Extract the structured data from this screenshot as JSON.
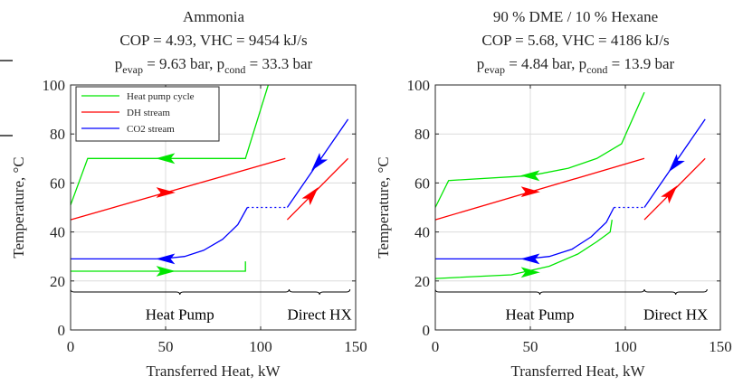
{
  "chart_data": [
    {
      "type": "line",
      "title": {
        "line1": "Ammonia",
        "line2": "COP = 4.93, VHC = 9454 kJ/s",
        "line3": {
          "p_evap_label": "p",
          "p_evap_sub": "evap",
          "p_evap_value": " = 9.63 bar, ",
          "p_cond_label": "p",
          "p_cond_sub": "cond",
          "p_cond_value": " = 33.3 bar"
        }
      },
      "xlabel": "Transferred Heat, kW",
      "ylabel": "Temperature, °C",
      "xlim": [
        0,
        150
      ],
      "ylim": [
        0,
        100
      ],
      "xticks": [
        "0",
        "50",
        "100",
        "150"
      ],
      "yticks": [
        "0",
        "20",
        "40",
        "60",
        "80",
        "100"
      ],
      "grid": true,
      "legend_position": "top-left",
      "regions": [
        {
          "label": "Heat Pump",
          "from": 0,
          "to": 115
        },
        {
          "label": "Direct HX",
          "from": 115,
          "to": 147
        }
      ],
      "series": [
        {
          "name": "Heat pump cycle",
          "color": "#00e600",
          "segments": [
            [
              [
                0,
                51
              ],
              [
                9,
                70
              ],
              [
                92,
                70
              ],
              [
                104,
                100
              ]
            ],
            [
              [
                0,
                24
              ],
              [
                92,
                24
              ],
              [
                92,
                28
              ]
            ]
          ],
          "arrows": [
            {
              "at": [
                50,
                70
              ],
              "dir": "left"
            },
            {
              "at": [
                50,
                24
              ],
              "dir": "right"
            }
          ]
        },
        {
          "name": "DH stream",
          "color": "#ff0000",
          "segments": [
            [
              [
                0,
                45
              ],
              [
                113,
                70
              ]
            ],
            [
              [
                114,
                45
              ],
              [
                146,
                70
              ]
            ]
          ],
          "arrows": [
            {
              "at": [
                50,
                56.1
              ],
              "dir": "right"
            },
            {
              "at": [
                127,
                55.2
              ],
              "dir": "upright"
            }
          ]
        },
        {
          "name": "CO2 stream",
          "color": "#0000ff",
          "segments": [
            [
              [
                0,
                29
              ],
              [
                48,
                29
              ],
              [
                60,
                30
              ],
              [
                70,
                32.5
              ],
              [
                80,
                37
              ],
              [
                88,
                43
              ],
              [
                93,
                50
              ]
            ],
            [
              [
                114,
                50
              ],
              [
                146,
                86
              ]
            ]
          ],
          "dotted": [
            [
              [
                93,
                50
              ],
              [
                114,
                50
              ]
            ]
          ],
          "arrows": [
            {
              "at": [
                50,
                29
              ],
              "dir": "left"
            },
            {
              "at": [
                130,
                68
              ],
              "dir": "downleft"
            }
          ]
        }
      ]
    },
    {
      "type": "line",
      "title": {
        "line1": "90 % DME / 10 % Hexane",
        "line2": "COP = 5.68, VHC = 4186 kJ/s",
        "line3": {
          "p_evap_label": "p",
          "p_evap_sub": "evap",
          "p_evap_value": " = 4.84 bar, ",
          "p_cond_label": "p",
          "p_cond_sub": "cond",
          "p_cond_value": " = 13.9 bar"
        }
      },
      "xlabel": "Transferred Heat, kW",
      "ylabel": "Temperature, °C",
      "xlim": [
        0,
        150
      ],
      "ylim": [
        0,
        100
      ],
      "xticks": [
        "0",
        "50",
        "100",
        "150"
      ],
      "yticks": [
        "0",
        "20",
        "40",
        "60",
        "80",
        "100"
      ],
      "grid": true,
      "regions": [
        {
          "label": "Heat Pump",
          "from": 0,
          "to": 110
        },
        {
          "label": "Direct HX",
          "from": 110,
          "to": 143
        }
      ],
      "series": [
        {
          "name": "Heat pump cycle",
          "color": "#00e600",
          "segments": [
            [
              [
                0,
                50
              ],
              [
                7,
                61
              ],
              [
                50,
                63
              ],
              [
                70,
                66
              ],
              [
                85,
                70
              ],
              [
                98,
                76
              ],
              [
                110,
                97
              ]
            ],
            [
              [
                0,
                21
              ],
              [
                40,
                22.5
              ],
              [
                60,
                26
              ],
              [
                75,
                31
              ],
              [
                85,
                36
              ],
              [
                92,
                40
              ],
              [
                93,
                45
              ]
            ]
          ],
          "arrows": [
            {
              "at": [
                50,
                63
              ],
              "dir": "left"
            },
            {
              "at": [
                50,
                23.5
              ],
              "dir": "right"
            }
          ]
        },
        {
          "name": "DH stream",
          "color": "#ff0000",
          "segments": [
            [
              [
                0,
                45
              ],
              [
                110,
                70
              ]
            ],
            [
              [
                110,
                45
              ],
              [
                142,
                70
              ]
            ]
          ],
          "arrows": [
            {
              "at": [
                50,
                56.4
              ],
              "dir": "right"
            },
            {
              "at": [
                124,
                55.9
              ],
              "dir": "upright"
            }
          ]
        },
        {
          "name": "CO2 stream",
          "color": "#0000ff",
          "segments": [
            [
              [
                0,
                29
              ],
              [
                48,
                29
              ],
              [
                60,
                30
              ],
              [
                72,
                33
              ],
              [
                82,
                38
              ],
              [
                90,
                44
              ],
              [
                94,
                50
              ]
            ],
            [
              [
                110,
                50
              ],
              [
                142,
                86
              ]
            ]
          ],
          "dotted": [
            [
              [
                94,
                50
              ],
              [
                110,
                50
              ]
            ]
          ],
          "arrows": [
            {
              "at": [
                50,
                29
              ],
              "dir": "left"
            },
            {
              "at": [
                126,
                67.5
              ],
              "dir": "downleft"
            }
          ]
        }
      ]
    }
  ]
}
